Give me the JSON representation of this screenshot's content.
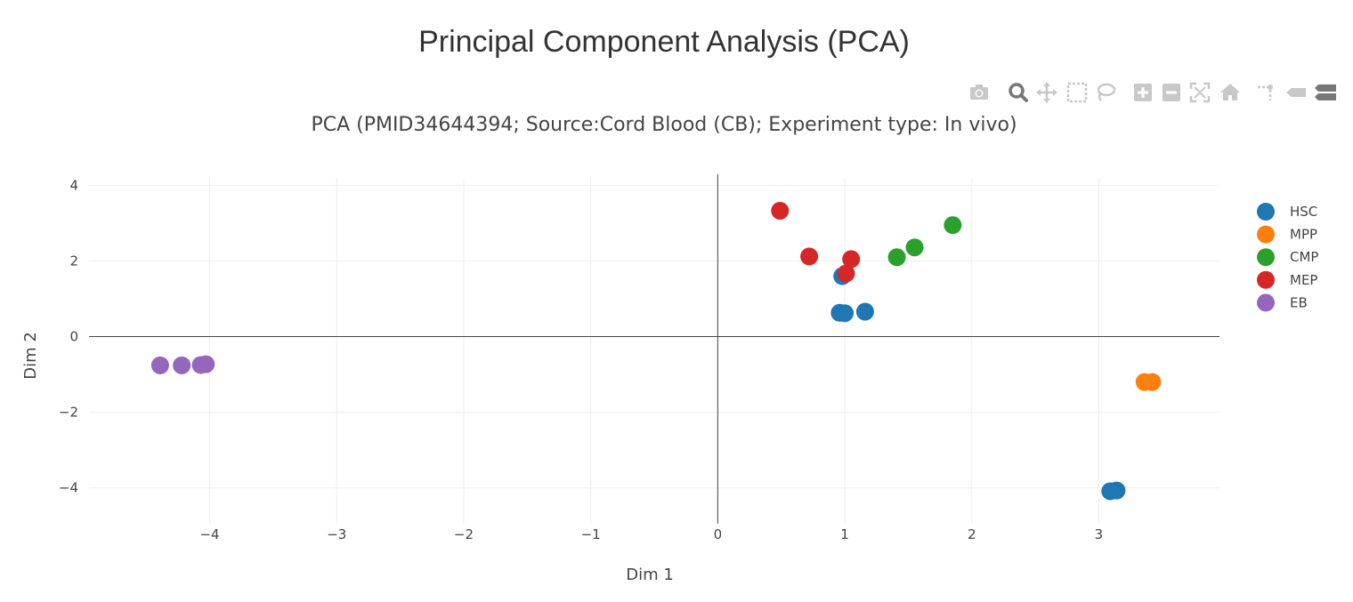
{
  "title": "Principal Component Analysis (PCA)",
  "modebar": {
    "icons": [
      "camera-icon",
      "zoom-icon",
      "pan-icon",
      "box-select-icon",
      "lasso-select-icon",
      "zoom-in-icon",
      "zoom-out-icon",
      "autoscale-icon",
      "reset-axes-icon",
      "spike-lines-icon",
      "hover-closest-icon",
      "hover-compare-icon"
    ]
  },
  "chart_data": {
    "type": "scatter",
    "title": "PCA (PMID34644394; Source:Cord Blood (CB); Experiment type: In vivo)",
    "xlabel": "Dim 1",
    "ylabel": "Dim 2",
    "xlim": [
      -4.95,
      3.95
    ],
    "ylim": [
      -4.95,
      4.2
    ],
    "xticks": [
      -4,
      -3,
      -2,
      -1,
      0,
      1,
      2,
      3
    ],
    "yticks": [
      -4,
      -2,
      0,
      2,
      4
    ],
    "grid": true,
    "zeroline": true,
    "legend_position": "top-right",
    "series": [
      {
        "name": "HSC",
        "color": "#1f77b4",
        "points": [
          [
            0.98,
            1.6
          ],
          [
            0.96,
            0.63
          ],
          [
            1.0,
            0.62
          ],
          [
            1.16,
            0.66
          ],
          [
            3.09,
            -4.09
          ],
          [
            3.14,
            -4.07
          ]
        ]
      },
      {
        "name": "MPP",
        "color": "#ff7f0e",
        "points": [
          [
            3.36,
            -1.2
          ],
          [
            3.42,
            -1.2
          ]
        ]
      },
      {
        "name": "CMP",
        "color": "#2ca02c",
        "points": [
          [
            1.41,
            2.1
          ],
          [
            1.55,
            2.36
          ],
          [
            1.85,
            2.95
          ]
        ]
      },
      {
        "name": "MEP",
        "color": "#d62728",
        "points": [
          [
            0.49,
            3.33
          ],
          [
            0.72,
            2.12
          ],
          [
            1.05,
            2.05
          ],
          [
            1.01,
            1.67
          ]
        ]
      },
      {
        "name": "EB",
        "color": "#9467bd",
        "points": [
          [
            -4.39,
            -0.76
          ],
          [
            -4.22,
            -0.76
          ],
          [
            -4.07,
            -0.75
          ],
          [
            -4.03,
            -0.73
          ]
        ]
      }
    ]
  }
}
